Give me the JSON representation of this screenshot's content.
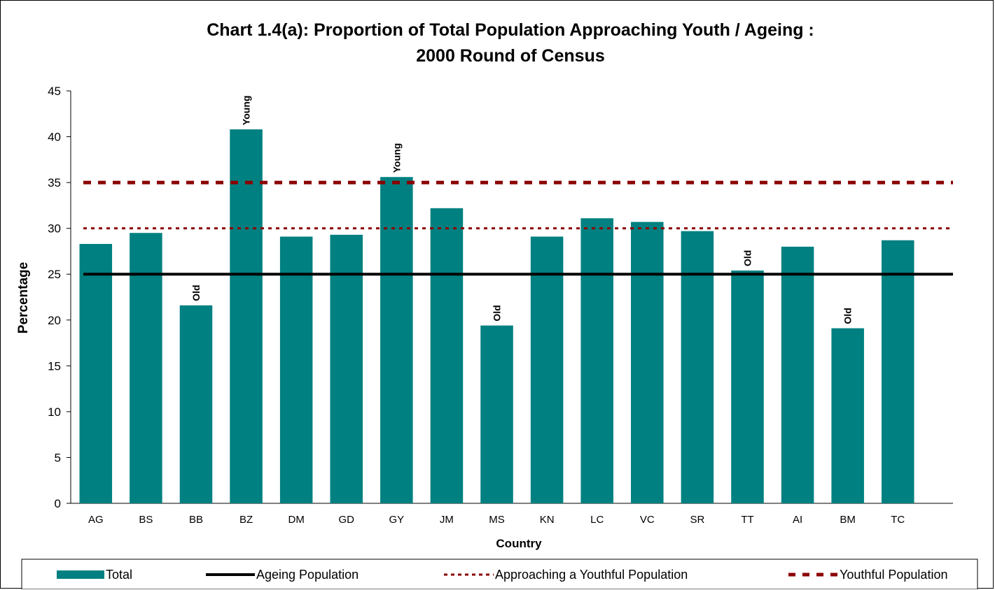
{
  "chart_data": {
    "type": "bar",
    "title": "Chart 1.4(a):    Proportion of Total Population Approaching Youth / Ageing :",
    "subtitle": "2000 Round of Census",
    "xlabel": "Country",
    "ylabel": "Percentage",
    "ylim": [
      0,
      45
    ],
    "yticks": [
      "0",
      "5",
      "10",
      "15",
      "20",
      "25",
      "30",
      "35",
      "40",
      "45"
    ],
    "categories": [
      "AG",
      "BS",
      "BB",
      "BZ",
      "DM",
      "GD",
      "GY",
      "JM",
      "MS",
      "KN",
      "LC",
      "VC",
      "SR",
      "TT",
      "AI",
      "BM",
      "TC"
    ],
    "series": [
      {
        "name": "Total",
        "values": [
          28.3,
          29.5,
          21.6,
          40.8,
          29.1,
          29.3,
          35.6,
          32.2,
          19.4,
          29.1,
          31.1,
          30.7,
          29.7,
          25.4,
          28.0,
          19.1,
          28.7
        ],
        "color": "#008080"
      }
    ],
    "reference_lines": [
      {
        "name": "Ageing Population",
        "value": 25,
        "style": "solid",
        "color": "#000000"
      },
      {
        "name": "Approaching a Youthful Population",
        "value": 30,
        "style": "dotted",
        "color": "#8b0000"
      },
      {
        "name": "Youthful Population",
        "value": 35,
        "style": "dashed",
        "color": "#8b0000"
      }
    ],
    "annotations": [
      {
        "category": "BB",
        "text": "Old"
      },
      {
        "category": "BZ",
        "text": "Young"
      },
      {
        "category": "GY",
        "text": "Young"
      },
      {
        "category": "MS",
        "text": "Old"
      },
      {
        "category": "TT",
        "text": "Old"
      },
      {
        "category": "BM",
        "text": "Old"
      }
    ],
    "grid": false,
    "legend_position": "bottom"
  }
}
